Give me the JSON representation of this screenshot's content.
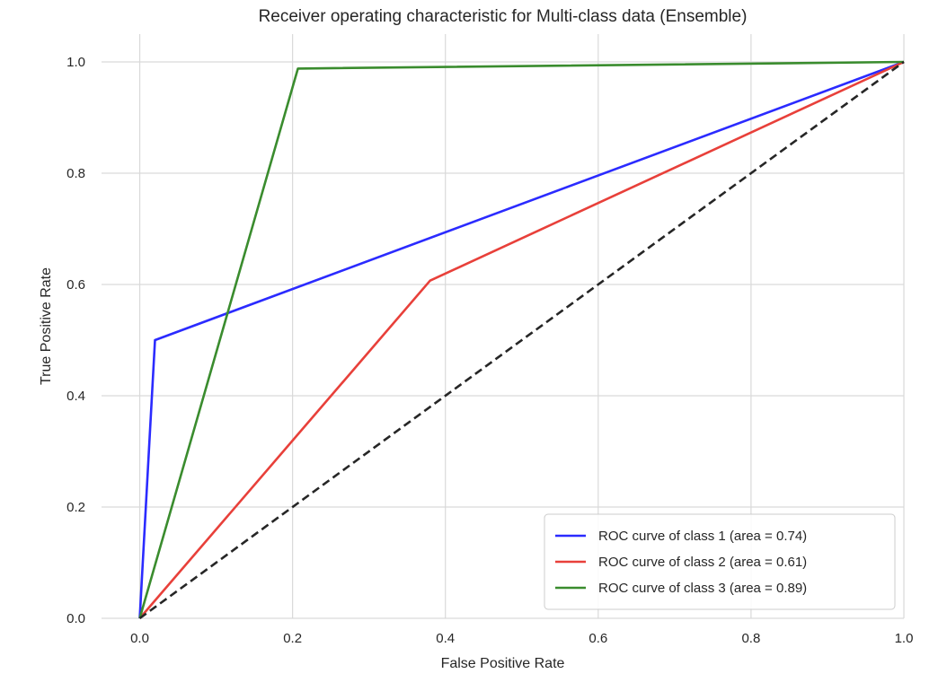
{
  "chart_data": {
    "type": "line",
    "title": "Receiver operating characteristic for Multi-class data (Ensemble)",
    "xlabel": "False Positive Rate",
    "ylabel": "True Positive Rate",
    "xlim": [
      -0.05,
      1.0
    ],
    "ylim": [
      0.0,
      1.05
    ],
    "grid": true,
    "legend_position": "lower-right",
    "x_ticks": [
      {
        "value": 0.0,
        "label": "0.0"
      },
      {
        "value": 0.2,
        "label": "0.2"
      },
      {
        "value": 0.4,
        "label": "0.4"
      },
      {
        "value": 0.6,
        "label": "0.6"
      },
      {
        "value": 0.8,
        "label": "0.8"
      },
      {
        "value": 1.0,
        "label": "1.0"
      }
    ],
    "y_ticks": [
      {
        "value": 0.0,
        "label": "0.0"
      },
      {
        "value": 0.2,
        "label": "0.2"
      },
      {
        "value": 0.4,
        "label": "0.4"
      },
      {
        "value": 0.6,
        "label": "0.6"
      },
      {
        "value": 0.8,
        "label": "0.8"
      },
      {
        "value": 1.0,
        "label": "1.0"
      }
    ],
    "series": [
      {
        "name": "ROC curve of class 1 (area = 0.74)",
        "color": "#2b2bff",
        "x": [
          0.0,
          0.02,
          1.0
        ],
        "y": [
          0.0,
          0.5,
          1.0
        ]
      },
      {
        "name": "ROC curve of class 2 (area = 0.61)",
        "color": "#e8403a",
        "x": [
          0.0,
          0.38,
          1.0
        ],
        "y": [
          0.0,
          0.607,
          1.0
        ]
      },
      {
        "name": "ROC curve of class 3 (area = 0.89)",
        "color": "#3a8c2e",
        "x": [
          0.0,
          0.207,
          1.0
        ],
        "y": [
          0.0,
          0.988,
          1.0
        ]
      }
    ],
    "reference_line": {
      "color": "#262626",
      "style": "dashed",
      "x": [
        0.0,
        1.0
      ],
      "y": [
        0.0,
        1.0
      ]
    }
  }
}
